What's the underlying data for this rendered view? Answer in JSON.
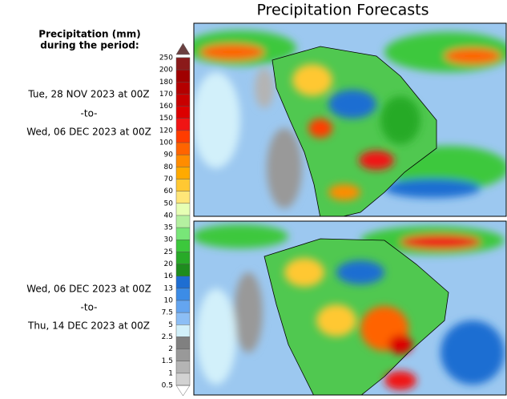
{
  "title": "Precipitation Forecasts",
  "legend": {
    "title_lines": [
      "Precipitation (mm)",
      "during the period:"
    ],
    "ticks": [
      250,
      200,
      180,
      170,
      160,
      150,
      120,
      100,
      90,
      80,
      70,
      60,
      50,
      40,
      35,
      30,
      25,
      20,
      16,
      13,
      10,
      7.5,
      5,
      2.5,
      2,
      1.5,
      1,
      0.5
    ],
    "colors": [
      "#8b1a1a",
      "#a00000",
      "#b40000",
      "#c80000",
      "#dc0000",
      "#f01414",
      "#ff3c00",
      "#ff6400",
      "#ff8c00",
      "#ffaa00",
      "#ffc832",
      "#ffe678",
      "#e6ffb4",
      "#b4f0a0",
      "#78e678",
      "#3cc83c",
      "#28aa28",
      "#1e8c1e",
      "#1e6ed2",
      "#3c8ce6",
      "#64a5f0",
      "#8cbef5",
      "#d2f0fa",
      "#808080",
      "#999999",
      "#b4b4b4",
      "#d2d2d2"
    ]
  },
  "periods": [
    {
      "start": "Tue, 28 NOV 2023 at 00Z",
      "separator": "-to-",
      "end": "Wed, 06 DEC 2023 at 00Z"
    },
    {
      "start": "Wed, 06 DEC 2023 at 00Z",
      "separator": "-to-",
      "end": "Thu, 14 DEC 2023 at 00Z"
    }
  ]
}
